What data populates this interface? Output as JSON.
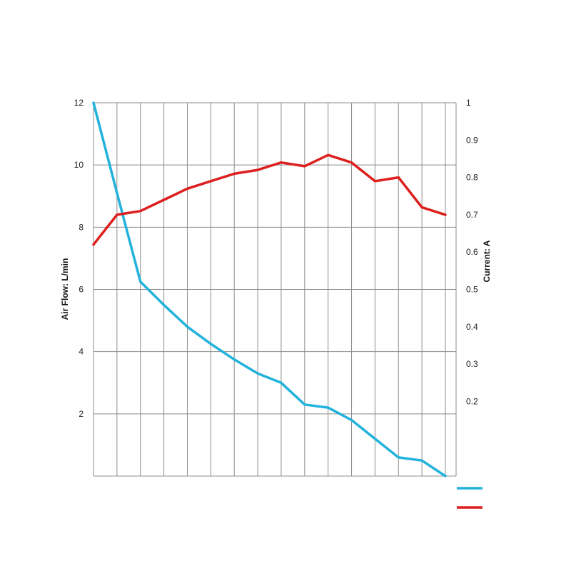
{
  "chart_data": {
    "type": "line",
    "title": "",
    "xlabel": "",
    "x": [
      0,
      1,
      2,
      3,
      4,
      5,
      6,
      7,
      8,
      9,
      10,
      11,
      12,
      13,
      14,
      15
    ],
    "grid": true,
    "y_left": {
      "label": "Air Flow: L/min",
      "lim": [
        0,
        12
      ],
      "ticks": [
        0,
        2,
        4,
        6,
        8,
        10,
        12
      ]
    },
    "y_right": {
      "label": "Current: A",
      "lim": [
        0,
        1
      ],
      "ticks": [
        0,
        0.1,
        0.2,
        0.3,
        0.4,
        0.5,
        0.6,
        0.7,
        0.8,
        0.9,
        1
      ]
    },
    "series": [
      {
        "axis": "left",
        "color": "#22b2dc",
        "values": [
          12,
          9.1,
          6.25,
          5.5,
          4.8,
          4.25,
          3.75,
          3.3,
          3.0,
          2.3,
          2.2,
          1.8,
          1.2,
          0.6,
          0.5,
          0.0
        ]
      },
      {
        "axis": "right",
        "color": "#dd1f1f",
        "values": [
          0.62,
          0.7,
          0.71,
          0.74,
          0.77,
          0.79,
          0.81,
          0.82,
          0.84,
          0.83,
          0.86,
          0.84,
          0.79,
          0.8,
          0.72,
          0.7
        ]
      }
    ]
  }
}
